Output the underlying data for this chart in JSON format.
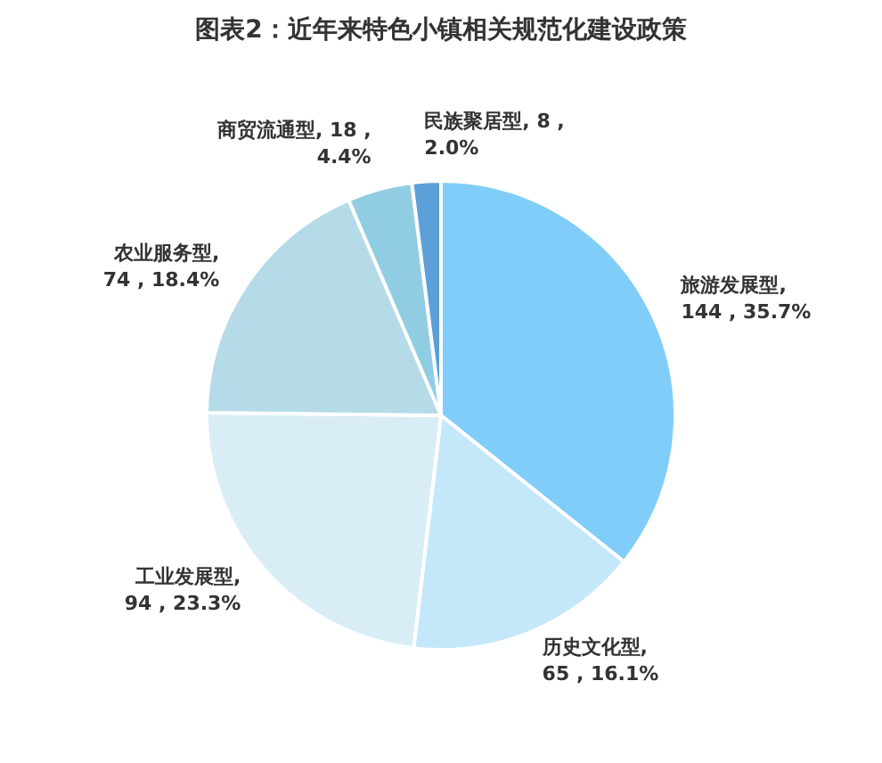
{
  "chart_data": {
    "type": "pie",
    "title": "图表2：近年来特色小镇相关规范化建设政策",
    "categories": [
      "旅游发展型",
      "历史文化型",
      "工业发展型",
      "农业服务型",
      "商贸流通型",
      "民族聚居型"
    ],
    "values": [
      144,
      65,
      94,
      74,
      18,
      8
    ],
    "value_labels": [
      ",\n144 , 35.7%",
      ",\n65 , 16.1%",
      ",\n94 , 23.3%",
      ",\n74 , 18.4%",
      ", 18 ,\n4.4%",
      ", 8 ,\n2.0%"
    ],
    "colors": [
      "#7fcdf8",
      "#c4e8fa",
      "#d9edf6",
      "#b4dbe7",
      "#91cde2",
      "#5d9fd8"
    ],
    "legend": false
  }
}
